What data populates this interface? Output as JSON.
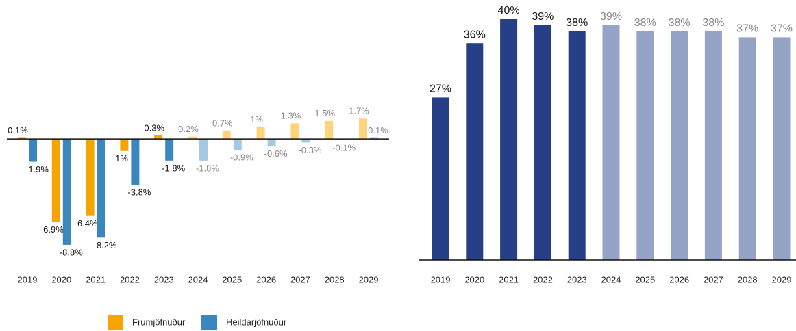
{
  "chart_data": [
    {
      "type": "grouped-bar",
      "categories": [
        "2019",
        "2020",
        "2021",
        "2022",
        "2023",
        "2024",
        "2025",
        "2026",
        "2027",
        "2028",
        "2029"
      ],
      "ylim": [
        -10,
        2
      ],
      "label_colors": [
        "#111111",
        "#111111",
        "#111111",
        "#111111",
        "#111111",
        "#888888",
        "#888888",
        "#888888",
        "#888888",
        "#888888",
        "#888888"
      ],
      "series": [
        {
          "name": "Frumjöfnuður",
          "color": "#f5a400",
          "colors": [
            "#f5a400",
            "#f5a400",
            "#f5a400",
            "#f5a400",
            "#f5a400",
            "#fdd37c",
            "#fdd37c",
            "#fdd37c",
            "#fdd37c",
            "#fdd37c",
            "#fdd37c"
          ],
          "values": [
            0.1,
            -6.9,
            -6.4,
            -1,
            0.3,
            0.2,
            0.7,
            1,
            1.3,
            1.5,
            1.7
          ],
          "value_labels": [
            "0.1%",
            "-6.9%",
            "-6.4%",
            "-1%",
            "0.3%",
            "0.2%",
            "0.7%",
            "1%",
            "1.3%",
            "1.5%",
            "1.7%"
          ]
        },
        {
          "name": "Heildarjöfnuður",
          "color": "#3a87c0",
          "colors": [
            "#3a87c0",
            "#3a87c0",
            "#3a87c0",
            "#3a87c0",
            "#3a87c0",
            "#a6c8e0",
            "#a6c8e0",
            "#a6c8e0",
            "#a6c8e0",
            "#a6c8e0",
            "#a6c8e0"
          ],
          "values": [
            -1.9,
            -8.8,
            -8.2,
            -3.8,
            -1.8,
            -1.8,
            -0.9,
            -0.6,
            -0.3,
            -0.1,
            0.1
          ],
          "value_labels": [
            "-1.9%",
            "-8.8%",
            "-8.2%",
            "-3.8%",
            "-1.8%",
            "-1.8%",
            "-0.9%",
            "-0.6%",
            "-0.3%",
            "-0.1%",
            "0.1%"
          ]
        }
      ]
    },
    {
      "type": "bar",
      "categories": [
        "2019",
        "2020",
        "2021",
        "2022",
        "2023",
        "2024",
        "2025",
        "2026",
        "2027",
        "2028",
        "2029"
      ],
      "ylim": [
        0,
        40
      ],
      "colors": [
        "#273f86",
        "#273f86",
        "#273f86",
        "#273f86",
        "#273f86",
        "#95a3c7",
        "#95a3c7",
        "#95a3c7",
        "#95a3c7",
        "#95a3c7",
        "#95a3c7"
      ],
      "label_colors": [
        "#111111",
        "#111111",
        "#111111",
        "#111111",
        "#111111",
        "#888888",
        "#888888",
        "#888888",
        "#888888",
        "#888888",
        "#888888"
      ],
      "values": [
        27,
        36,
        40,
        39,
        38,
        39,
        38,
        38,
        38,
        37,
        37
      ],
      "value_labels": [
        "27%",
        "36%",
        "40%",
        "39%",
        "38%",
        "39%",
        "38%",
        "38%",
        "38%",
        "37%",
        "37%"
      ]
    }
  ]
}
